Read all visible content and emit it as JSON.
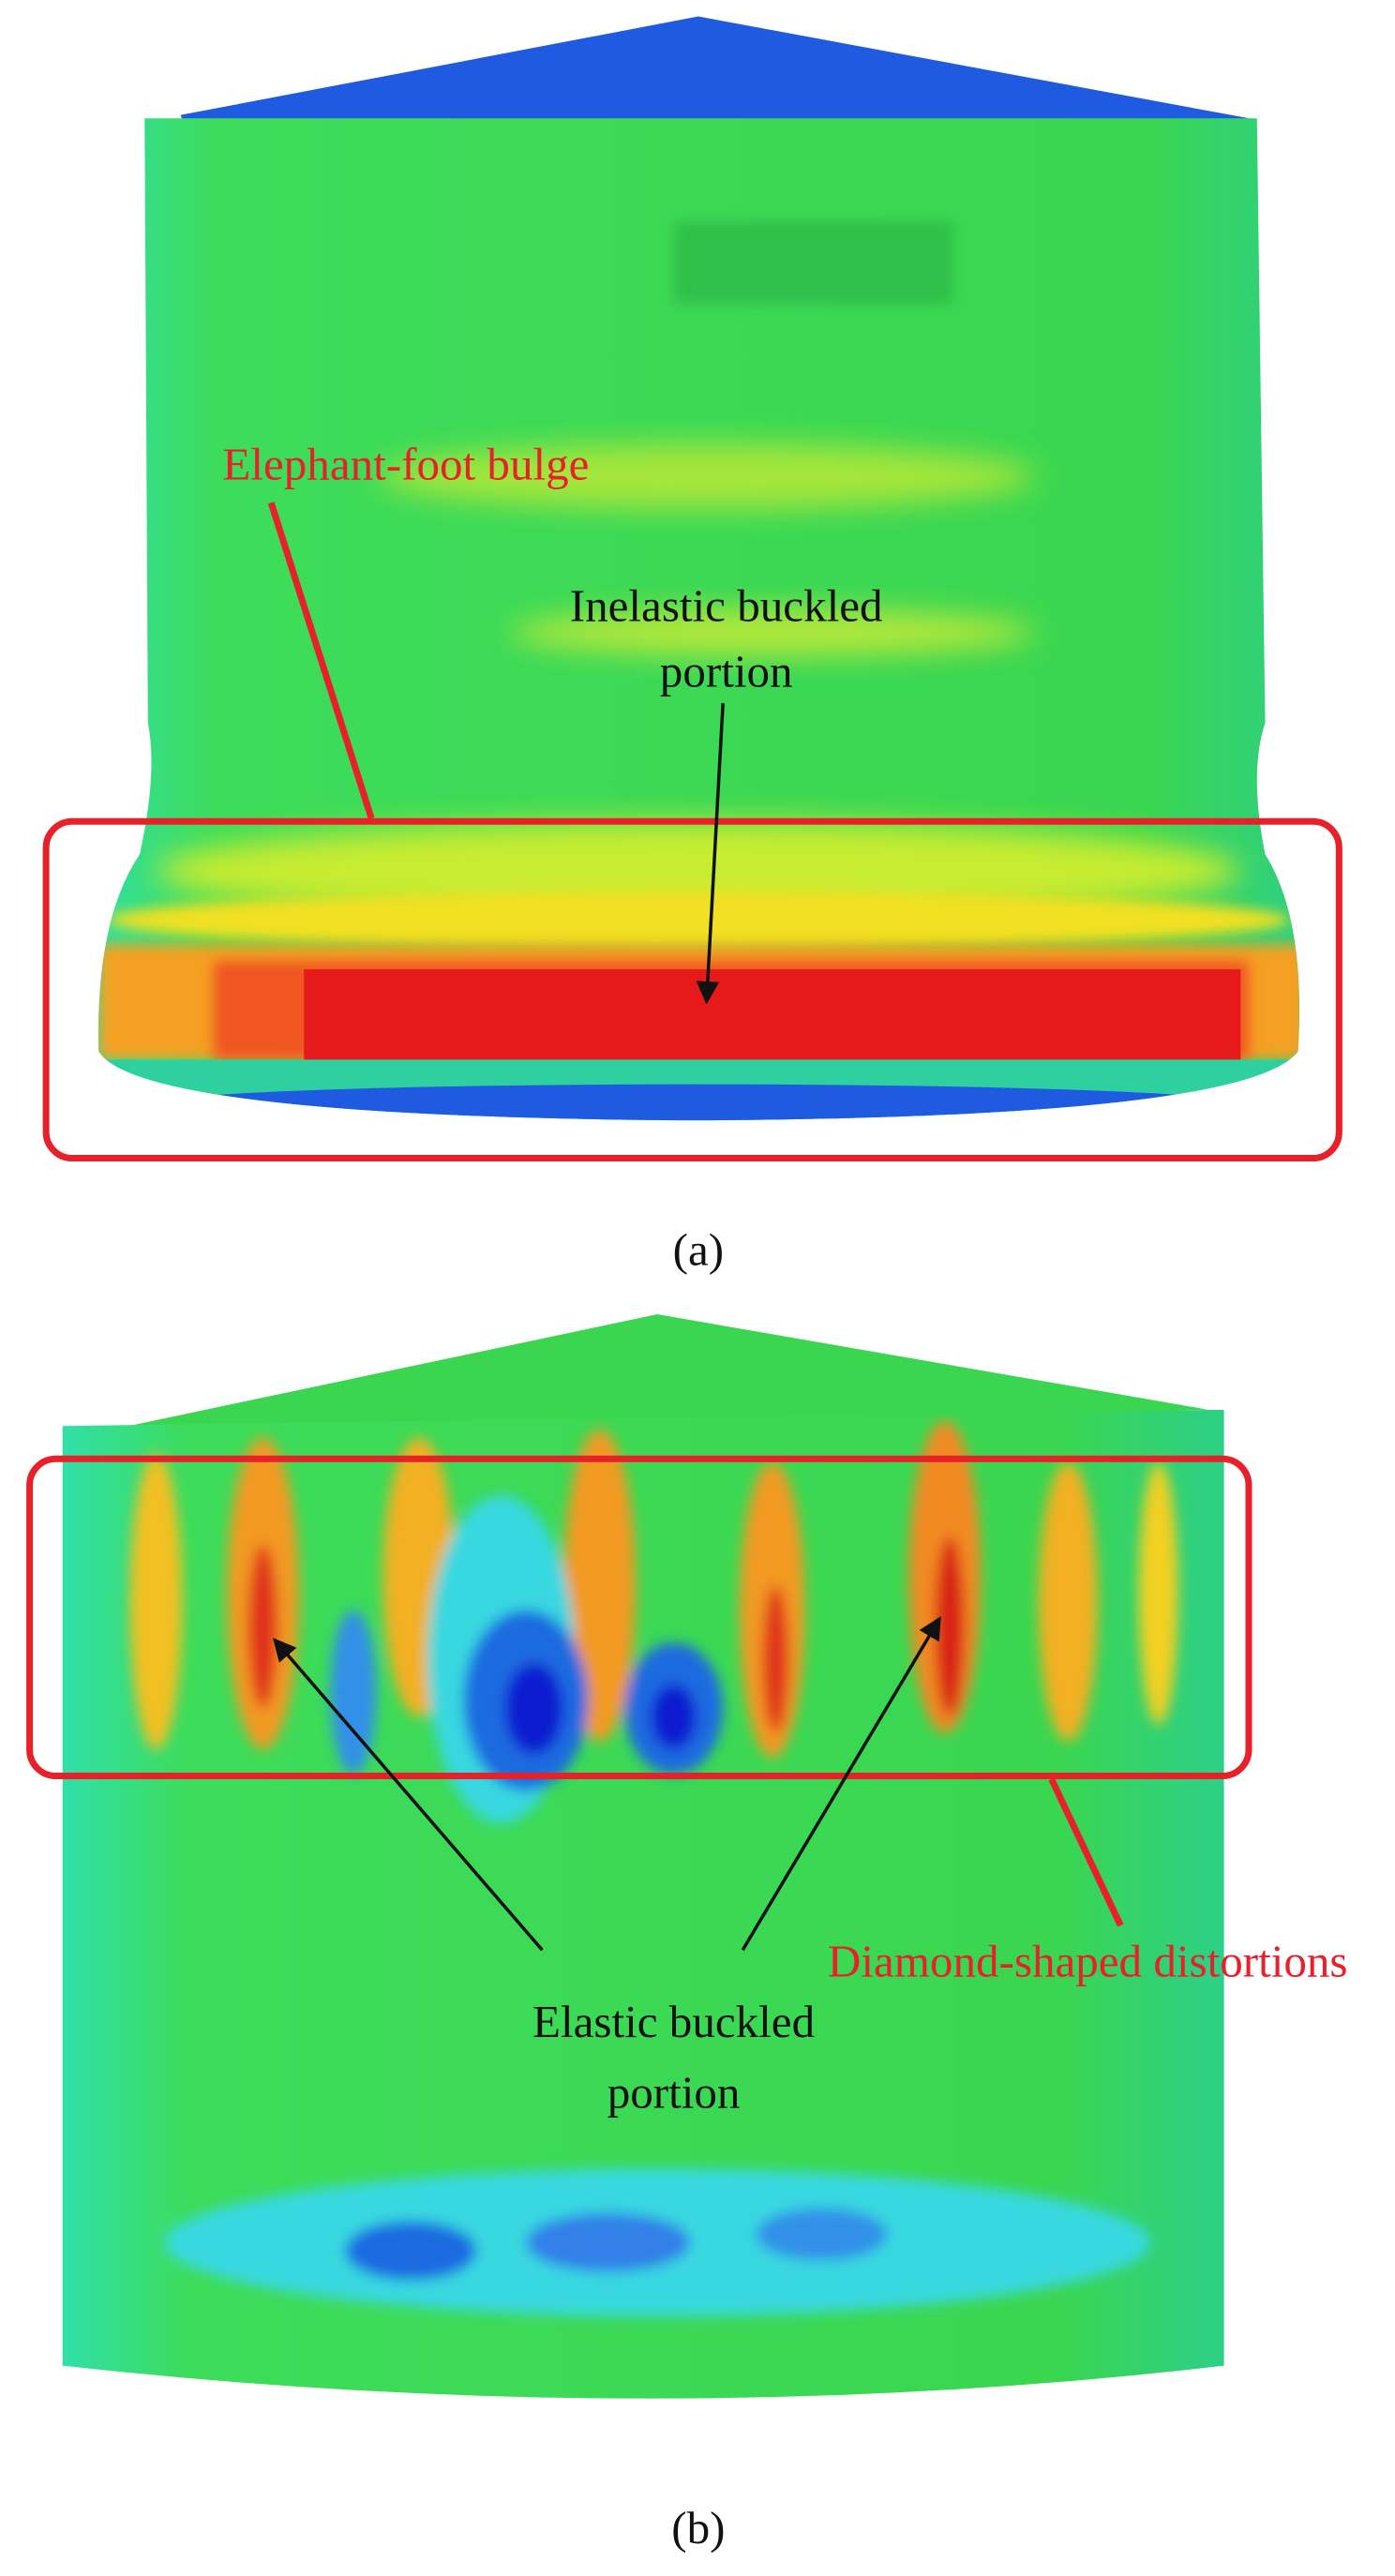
{
  "panel_a": {
    "bulge_label": "Elephant-foot bulge",
    "buckle_label": [
      "Inelastic buckled",
      "portion"
    ],
    "caption": "(a)"
  },
  "panel_b": {
    "distortion_label": "Diamond-shaped distortions",
    "buckle_label": [
      "Elastic buckled",
      "portion"
    ],
    "caption": "(b)"
  }
}
